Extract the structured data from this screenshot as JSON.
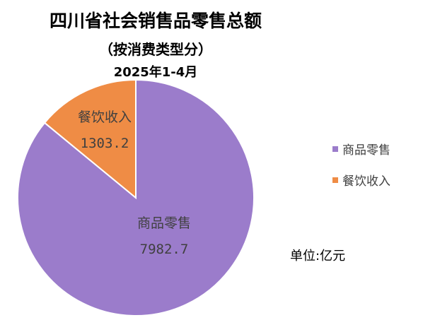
{
  "chart_data": {
    "type": "pie",
    "title": "四川省社会销售品零售总额",
    "subtitle": "（按消费类型分）",
    "period": "2025年1-4月",
    "unit_note": "单位:亿元",
    "legend_position": "right",
    "slices": [
      {
        "label": "商品零售",
        "value": 7982.7,
        "value_text": "7982.7",
        "color": "#9b7ccb"
      },
      {
        "label": "餐饮收入",
        "value": 1303.2,
        "value_text": "1303.2",
        "color": "#ef8c45"
      }
    ]
  }
}
